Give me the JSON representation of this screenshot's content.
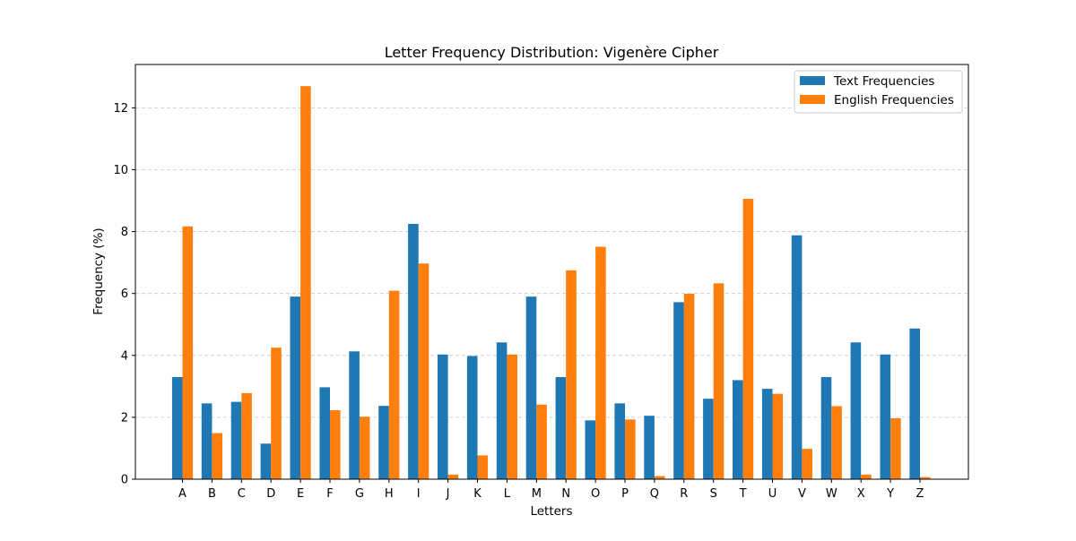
{
  "chart_data": {
    "type": "bar",
    "title": "Letter Frequency Distribution: Vigenère Cipher",
    "xlabel": "Letters",
    "ylabel": "Frequency (%)",
    "ylim": [
      0,
      13.4
    ],
    "yticks": [
      0,
      2,
      4,
      6,
      8,
      10,
      12
    ],
    "grid": "y-dashed",
    "legend_position": "top-right",
    "categories": [
      "A",
      "B",
      "C",
      "D",
      "E",
      "F",
      "G",
      "H",
      "I",
      "J",
      "K",
      "L",
      "M",
      "N",
      "O",
      "P",
      "Q",
      "R",
      "S",
      "T",
      "U",
      "V",
      "W",
      "X",
      "Y",
      "Z"
    ],
    "series": [
      {
        "name": "Text Frequencies",
        "color": "#1f77b4",
        "values": [
          3.3,
          2.45,
          2.5,
          1.15,
          5.9,
          2.97,
          4.13,
          2.37,
          8.25,
          4.03,
          3.98,
          4.42,
          5.9,
          3.3,
          1.9,
          2.45,
          2.05,
          5.72,
          2.6,
          3.2,
          2.92,
          7.88,
          3.3,
          4.42,
          4.03,
          4.87
        ]
      },
      {
        "name": "English Frequencies",
        "color": "#ff7f0e",
        "values": [
          8.17,
          1.49,
          2.78,
          4.25,
          12.7,
          2.23,
          2.02,
          6.09,
          6.97,
          0.15,
          0.77,
          4.03,
          2.41,
          6.75,
          7.51,
          1.93,
          0.1,
          5.99,
          6.33,
          9.06,
          2.76,
          0.98,
          2.36,
          0.15,
          1.97,
          0.07
        ]
      }
    ]
  }
}
